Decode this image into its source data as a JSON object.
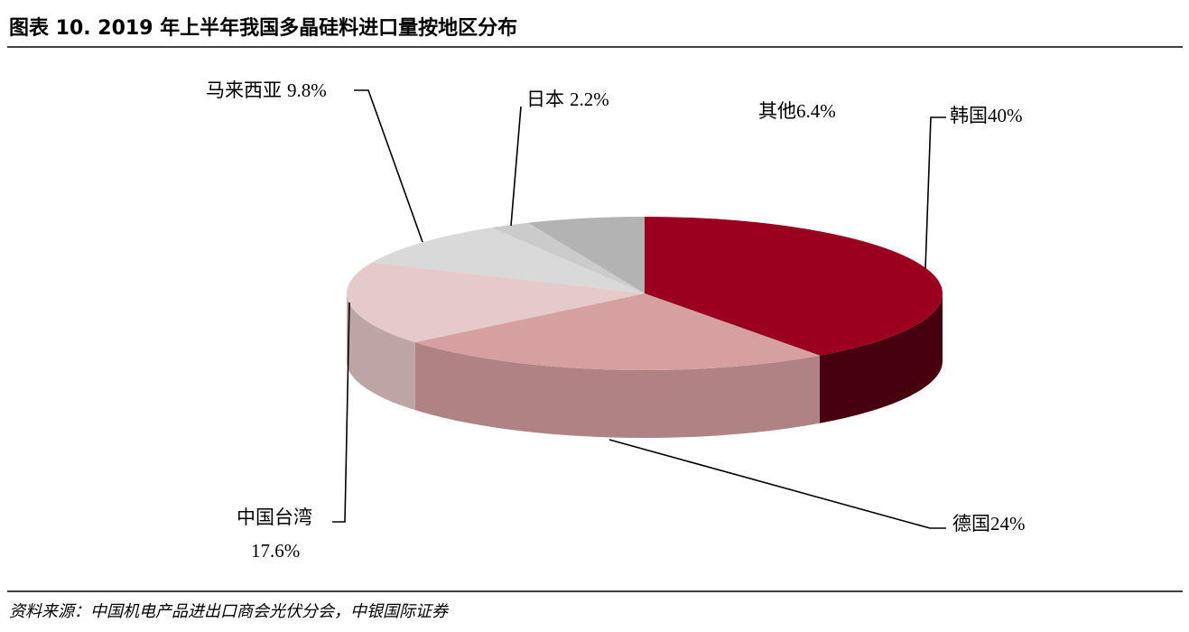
{
  "chart_data": {
    "type": "pie",
    "title": "图表 10. 2019 年上半年我国多晶硅料进口量按地区分布",
    "source": "资料来源：中国机电产品进出口商会光伏分会，中银国际证券",
    "categories": [
      "韩国",
      "德国",
      "中国台湾",
      "马来西亚",
      "日本",
      "其他"
    ],
    "values": [
      40,
      24,
      17.6,
      9.8,
      2.2,
      6.4
    ],
    "value_labels": [
      "40%",
      "24%",
      "17.6%",
      "9.8%",
      "2.2%",
      "6.4%"
    ],
    "colors": [
      "#9b001f",
      "#d6a0a0",
      "#e6c9c9",
      "#d9d9d9",
      "#cbcbcb",
      "#b3b3b3"
    ]
  }
}
